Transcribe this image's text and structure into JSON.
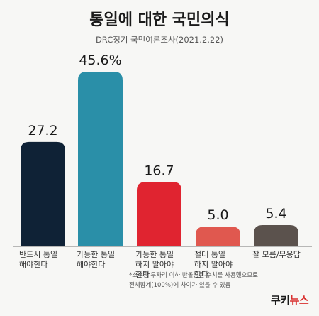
{
  "header": {
    "title": "통일에 대한 국민의식",
    "subtitle": "DRC정기 국민여론조사(2021.2.22)"
  },
  "chart_data": {
    "type": "bar",
    "categories": [
      "반드시 통일\n해야한다",
      "가능한 통일\n해야한다",
      "가능한 통일\n하지 말아야\n한다",
      "절대 통일\n하지 말아야\n한다",
      "잘 모름/무응답"
    ],
    "values": [
      27.2,
      45.6,
      16.7,
      5.0,
      5.4
    ],
    "value_labels": [
      "27.2",
      "45.6%",
      "16.7",
      "5.0",
      "5.4"
    ],
    "colors": [
      "#0f2236",
      "#2a8fa8",
      "#e02430",
      "#e0584f",
      "#5b524d"
    ],
    "ylim": [
      0,
      45.6
    ],
    "grid": false
  },
  "footer": {
    "note": "*소수점 두자리 이하 반올림된 수치를 사용했으므로\n전체합계(100%)에 차이가 있을 수 있음",
    "brand_part1": "쿠키",
    "brand_part2": "뉴스"
  }
}
